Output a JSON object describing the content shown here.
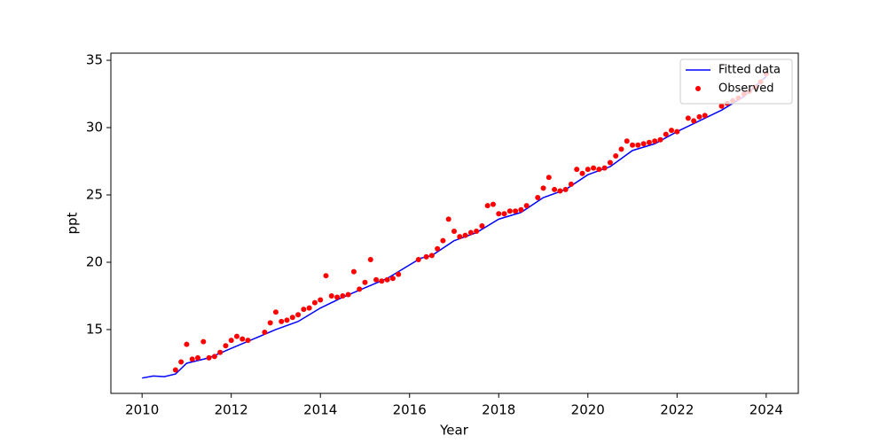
{
  "chart_data": {
    "type": "line",
    "xlabel": "Year",
    "ylabel": "ppt",
    "xlim": [
      2009.3,
      2024.72
    ],
    "xticks": [
      2010,
      2012,
      2014,
      2016,
      2018,
      2020,
      2022,
      2024
    ],
    "ylim": [
      10.26,
      35.53
    ],
    "yticks": [
      15,
      20,
      25,
      30,
      35
    ],
    "legend": "upper right",
    "series": [
      {
        "name": "Fitted data",
        "color": "#0000ff",
        "type": "line",
        "x": [
          2010,
          2010.25,
          2010.5,
          2010.75,
          2011,
          2011.5,
          2012,
          2012.5,
          2013,
          2013.5,
          2014,
          2014.5,
          2015,
          2015.5,
          2016,
          2016.25,
          2016.5,
          2017,
          2017.5,
          2018,
          2018.5,
          2019,
          2019.5,
          2020,
          2020.5,
          2021,
          2021.5,
          2022,
          2022.5,
          2023,
          2023.5,
          2024
        ],
        "values": [
          11.4,
          11.55,
          11.5,
          11.7,
          12.5,
          12.9,
          13.6,
          14.3,
          15.0,
          15.6,
          16.6,
          17.4,
          18.1,
          18.8,
          19.8,
          20.3,
          20.5,
          21.6,
          22.2,
          23.2,
          23.7,
          24.8,
          25.4,
          26.5,
          27.1,
          28.3,
          28.8,
          29.7,
          30.5,
          31.3,
          32.3,
          33.8
        ]
      },
      {
        "name": "Observed",
        "color": "#ff0000",
        "type": "scatter",
        "x": [
          2010.75,
          2010.875,
          2011.0,
          2011.125,
          2011.25,
          2011.375,
          2011.5,
          2011.625,
          2011.75,
          2011.875,
          2012.0,
          2012.125,
          2012.25,
          2012.375,
          2012.75,
          2012.875,
          2013.0,
          2013.125,
          2013.25,
          2013.375,
          2013.5,
          2013.625,
          2013.75,
          2013.875,
          2014.0,
          2014.125,
          2014.25,
          2014.375,
          2014.5,
          2014.625,
          2014.75,
          2014.875,
          2015.0,
          2015.125,
          2015.25,
          2015.375,
          2015.5,
          2015.625,
          2015.75,
          2016.2,
          2016.375,
          2016.5,
          2016.625,
          2016.75,
          2016.875,
          2017.0,
          2017.125,
          2017.25,
          2017.375,
          2017.5,
          2017.625,
          2017.75,
          2017.875,
          2018.0,
          2018.125,
          2018.25,
          2018.375,
          2018.5,
          2018.625,
          2018.875,
          2019.0,
          2019.125,
          2019.25,
          2019.375,
          2019.5,
          2019.625,
          2019.75,
          2019.875,
          2020.0,
          2020.125,
          2020.25,
          2020.375,
          2020.5,
          2020.625,
          2020.75,
          2020.875,
          2021.0,
          2021.125,
          2021.25,
          2021.375,
          2021.5,
          2021.625,
          2021.75,
          2021.875,
          2022.0,
          2022.25,
          2022.375,
          2022.5,
          2022.625,
          2023.0,
          2023.125,
          2023.25,
          2023.375,
          2023.5,
          2023.625,
          2023.75,
          2023.875,
          2024.0
        ],
        "values": [
          12.0,
          12.6,
          13.9,
          12.8,
          12.9,
          14.1,
          12.9,
          13.0,
          13.3,
          13.8,
          14.2,
          14.5,
          14.3,
          14.2,
          14.8,
          15.5,
          16.3,
          15.6,
          15.7,
          15.9,
          16.1,
          16.5,
          16.6,
          17.0,
          17.2,
          19.0,
          17.5,
          17.4,
          17.5,
          17.6,
          19.3,
          18.0,
          18.5,
          20.2,
          18.7,
          18.6,
          18.7,
          18.8,
          19.1,
          20.2,
          20.4,
          20.5,
          21.0,
          21.6,
          23.2,
          22.3,
          21.9,
          22.0,
          22.2,
          22.3,
          22.7,
          24.2,
          24.3,
          23.6,
          23.6,
          23.8,
          23.8,
          23.9,
          24.2,
          24.8,
          25.5,
          26.3,
          25.4,
          25.3,
          25.4,
          25.8,
          26.9,
          26.6,
          26.9,
          27.0,
          26.9,
          27.0,
          27.4,
          27.9,
          28.4,
          29.0,
          28.7,
          28.7,
          28.8,
          28.9,
          29.0,
          29.1,
          29.5,
          29.8,
          29.7,
          30.7,
          30.5,
          30.8,
          30.9,
          31.6,
          31.8,
          32.0,
          32.2,
          32.5,
          32.7,
          33.0,
          33.4,
          34.0
        ]
      }
    ]
  }
}
